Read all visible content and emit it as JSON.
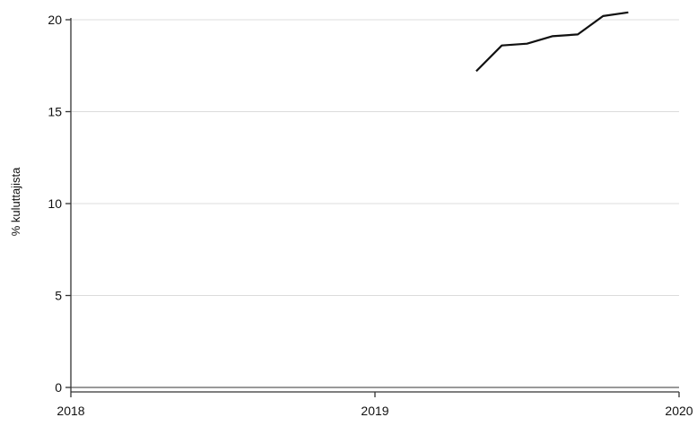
{
  "chart_data": {
    "type": "line",
    "title": "",
    "xlabel": "",
    "ylabel": "% kuluttajista",
    "xlim": [
      2018,
      2020
    ],
    "ylim": [
      0,
      20
    ],
    "x_ticks": [
      {
        "value": 2018,
        "label": "2018"
      },
      {
        "value": 2019,
        "label": "2019"
      },
      {
        "value": 2020,
        "label": "2020"
      }
    ],
    "y_ticks": [
      {
        "value": 0,
        "label": "0"
      },
      {
        "value": 5,
        "label": "5"
      },
      {
        "value": 10,
        "label": "10"
      },
      {
        "value": 15,
        "label": "15"
      },
      {
        "value": 20,
        "label": "20"
      }
    ],
    "grid": "horizontal",
    "legend": "none",
    "colors": {
      "line": "#111111",
      "grid": "#dcdcdc",
      "axis": "#333333",
      "baseline": "#999999"
    },
    "series": [
      {
        "x": [
          2019.333,
          2019.417,
          2019.5,
          2019.583,
          2019.667,
          2019.75,
          2019.833
        ],
        "y": [
          17.2,
          18.6,
          18.7,
          19.1,
          19.2,
          20.2,
          20.4
        ]
      }
    ]
  }
}
